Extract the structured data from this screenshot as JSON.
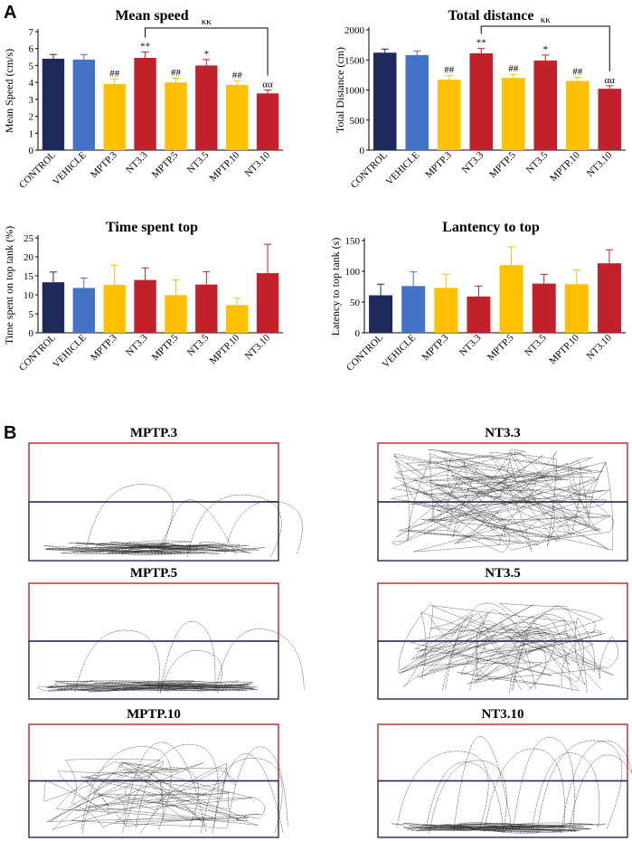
{
  "panel_labels": {
    "a": "A",
    "b": "B"
  },
  "colors": {
    "control": "#1f2a5c",
    "vehicle": "#4472c4",
    "mptp": "#ffc000",
    "nt3": "#c0212a",
    "tank_top_border": "#c0212a",
    "tank_bottom_border": "#1f2a5c",
    "trace": "#222222"
  },
  "chart_data": [
    {
      "type": "bar",
      "title": "Mean speed",
      "ylabel": "Mean Speed (cm/s)",
      "xlabel": "",
      "categories": [
        "CONTROL",
        "VEHICLE",
        "MPTP.3",
        "NT3.3",
        "MPTP.5",
        "NT3.5",
        "MPTP.10",
        "NT3.10"
      ],
      "values": [
        5.4,
        5.35,
        3.9,
        5.45,
        4.0,
        5.0,
        3.85,
        3.35
      ],
      "errors": [
        0.25,
        0.3,
        0.3,
        0.35,
        0.25,
        0.35,
        0.25,
        0.2
      ],
      "bar_color_keys": [
        "control",
        "vehicle",
        "mptp",
        "nt3",
        "mptp",
        "nt3",
        "mptp",
        "nt3"
      ],
      "ylim": [
        0,
        7
      ],
      "yticks": [
        0,
        1,
        2,
        3,
        4,
        5,
        6,
        7
      ],
      "annotations": [
        "",
        "",
        "##",
        "**",
        "##",
        "*",
        "##",
        "αα"
      ],
      "bracket": {
        "from_index": 3,
        "to_index": 7,
        "label": "κκ"
      }
    },
    {
      "type": "bar",
      "title": "Total distance",
      "ylabel": "Total Distance (cm)",
      "xlabel": "",
      "categories": [
        "CONTROL",
        "VEHICLE",
        "MPTP.3",
        "NT3.3",
        "MPTP.5",
        "NT3.5",
        "MPTP.10",
        "NT3.10"
      ],
      "values": [
        1620,
        1580,
        1170,
        1610,
        1200,
        1490,
        1150,
        1020
      ],
      "errors": [
        60,
        70,
        70,
        80,
        60,
        90,
        60,
        50
      ],
      "bar_color_keys": [
        "control",
        "vehicle",
        "mptp",
        "nt3",
        "mptp",
        "nt3",
        "mptp",
        "nt3"
      ],
      "ylim": [
        0,
        2000
      ],
      "yticks": [
        0,
        500,
        1000,
        1500,
        2000
      ],
      "annotations": [
        "",
        "",
        "##",
        "**",
        "##",
        "*",
        "##",
        "αα"
      ],
      "bracket": {
        "from_index": 3,
        "to_index": 7,
        "label": "κκ"
      }
    },
    {
      "type": "bar",
      "title": "Time spent top",
      "ylabel": "Time spent on top tank (%)",
      "xlabel": "",
      "categories": [
        "CONTROL",
        "VEHICLE",
        "MPTP.3",
        "NT3.3",
        "MPTP.5",
        "NT3.5",
        "MPTP.10",
        "NT3.10"
      ],
      "values": [
        13.3,
        11.8,
        12.6,
        13.9,
        9.9,
        12.7,
        7.3,
        15.7
      ],
      "errors": [
        2.7,
        2.6,
        5.2,
        3.2,
        4.0,
        3.4,
        1.8,
        7.6
      ],
      "bar_color_keys": [
        "control",
        "vehicle",
        "mptp",
        "nt3",
        "mptp",
        "nt3",
        "mptp",
        "nt3"
      ],
      "ylim": [
        0,
        25
      ],
      "yticks": [
        0,
        5,
        10,
        15,
        20,
        25
      ],
      "annotations": [
        "",
        "",
        "",
        "",
        "",
        "",
        "",
        ""
      ],
      "bracket": null
    },
    {
      "type": "bar",
      "title": "Lantency to top",
      "ylabel": "Latency to top tank (s)",
      "xlabel": "",
      "categories": [
        "CONTROL",
        "VEHICLE",
        "MPTP.3",
        "NT3.3",
        "MPTP.5",
        "NT3.5",
        "MPTP.10",
        "NT3.10"
      ],
      "values": [
        61,
        76,
        73,
        59,
        110,
        80,
        79,
        113
      ],
      "errors": [
        18,
        23,
        22,
        17,
        30,
        15,
        23,
        22
      ],
      "bar_color_keys": [
        "control",
        "vehicle",
        "mptp",
        "nt3",
        "mptp",
        "nt3",
        "mptp",
        "nt3"
      ],
      "ylim": [
        0,
        150
      ],
      "yticks": [
        0,
        50,
        100,
        150
      ],
      "annotations": [
        "",
        "",
        "",
        "",
        "",
        "",
        "",
        ""
      ],
      "bracket": null
    }
  ],
  "tracks": [
    {
      "label": "MPTP.3",
      "density": "bottom-heavy"
    },
    {
      "label": "NT3.3",
      "density": "dense-full"
    },
    {
      "label": "MPTP.5",
      "density": "bottom-heavy"
    },
    {
      "label": "NT3.5",
      "density": "spread"
    },
    {
      "label": "MPTP.10",
      "density": "spread-bottom"
    },
    {
      "label": "NT3.10",
      "density": "bottom-sparse-top"
    }
  ]
}
